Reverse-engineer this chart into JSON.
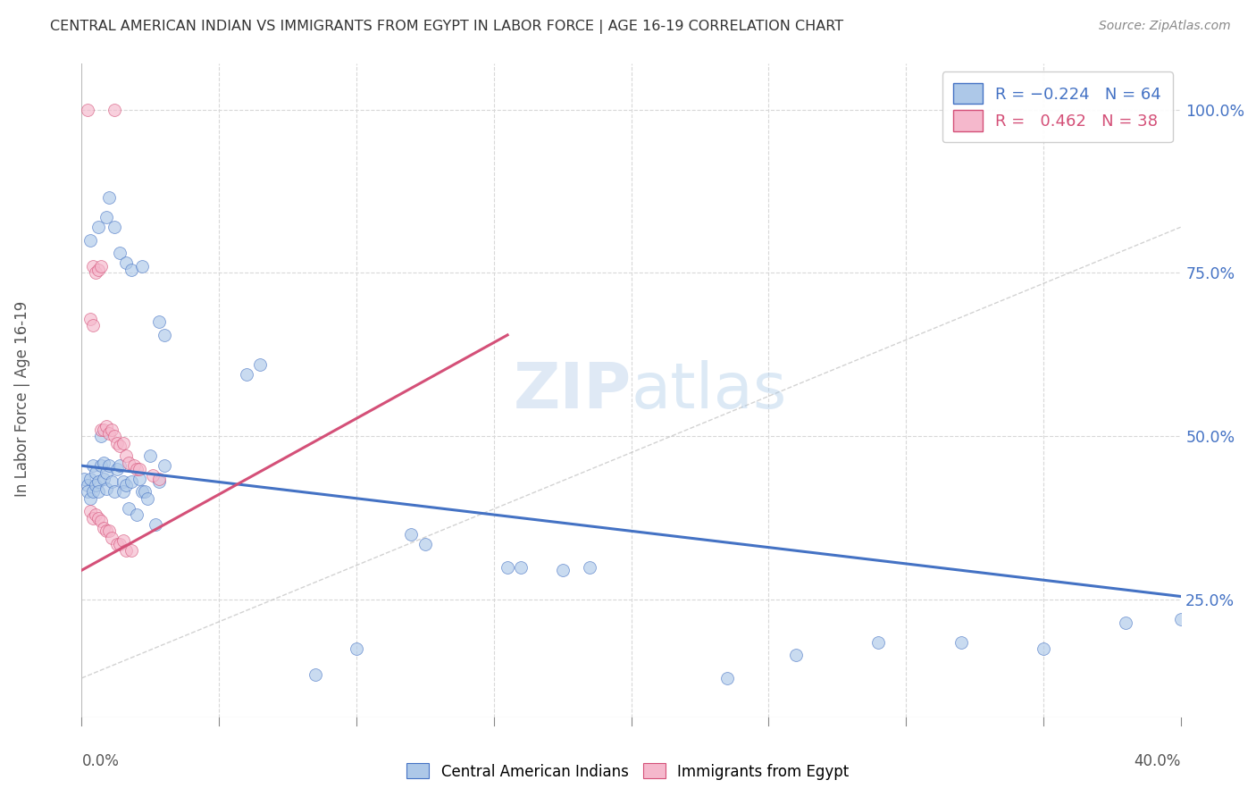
{
  "title": "CENTRAL AMERICAN INDIAN VS IMMIGRANTS FROM EGYPT IN LABOR FORCE | AGE 16-19 CORRELATION CHART",
  "source": "Source: ZipAtlas.com",
  "ylabel": "In Labor Force | Age 16-19",
  "ytick_labels": [
    "25.0%",
    "50.0%",
    "75.0%",
    "100.0%"
  ],
  "ytick_values": [
    0.25,
    0.5,
    0.75,
    1.0
  ],
  "xmin": 0.0,
  "xmax": 0.4,
  "ymin": 0.07,
  "ymax": 1.07,
  "r_blue": -0.224,
  "n_blue": 64,
  "r_pink": 0.462,
  "n_pink": 38,
  "legend_label_blue": "Central American Indians",
  "legend_label_pink": "Immigrants from Egypt",
  "dot_color_blue": "#adc8e8",
  "dot_color_pink": "#f5b8cc",
  "line_color_blue": "#4472c4",
  "line_color_pink": "#d45078",
  "dot_size": 100,
  "dot_alpha": 0.65,
  "blue_dots": [
    [
      0.001,
      0.435
    ],
    [
      0.002,
      0.425
    ],
    [
      0.002,
      0.415
    ],
    [
      0.003,
      0.435
    ],
    [
      0.003,
      0.405
    ],
    [
      0.004,
      0.455
    ],
    [
      0.004,
      0.415
    ],
    [
      0.005,
      0.445
    ],
    [
      0.005,
      0.425
    ],
    [
      0.006,
      0.43
    ],
    [
      0.006,
      0.415
    ],
    [
      0.007,
      0.5
    ],
    [
      0.007,
      0.455
    ],
    [
      0.008,
      0.46
    ],
    [
      0.008,
      0.435
    ],
    [
      0.009,
      0.445
    ],
    [
      0.009,
      0.42
    ],
    [
      0.01,
      0.455
    ],
    [
      0.011,
      0.43
    ],
    [
      0.012,
      0.415
    ],
    [
      0.013,
      0.45
    ],
    [
      0.014,
      0.455
    ],
    [
      0.015,
      0.43
    ],
    [
      0.015,
      0.415
    ],
    [
      0.016,
      0.425
    ],
    [
      0.017,
      0.39
    ],
    [
      0.018,
      0.43
    ],
    [
      0.02,
      0.38
    ],
    [
      0.021,
      0.435
    ],
    [
      0.022,
      0.415
    ],
    [
      0.023,
      0.415
    ],
    [
      0.024,
      0.405
    ],
    [
      0.025,
      0.47
    ],
    [
      0.027,
      0.365
    ],
    [
      0.028,
      0.43
    ],
    [
      0.03,
      0.455
    ],
    [
      0.003,
      0.8
    ],
    [
      0.006,
      0.82
    ],
    [
      0.009,
      0.835
    ],
    [
      0.01,
      0.865
    ],
    [
      0.012,
      0.82
    ],
    [
      0.014,
      0.78
    ],
    [
      0.016,
      0.765
    ],
    [
      0.018,
      0.755
    ],
    [
      0.022,
      0.76
    ],
    [
      0.028,
      0.675
    ],
    [
      0.03,
      0.655
    ],
    [
      0.06,
      0.595
    ],
    [
      0.065,
      0.61
    ],
    [
      0.085,
      0.135
    ],
    [
      0.1,
      0.175
    ],
    [
      0.12,
      0.35
    ],
    [
      0.125,
      0.335
    ],
    [
      0.155,
      0.3
    ],
    [
      0.16,
      0.3
    ],
    [
      0.175,
      0.295
    ],
    [
      0.185,
      0.3
    ],
    [
      0.235,
      0.13
    ],
    [
      0.26,
      0.165
    ],
    [
      0.29,
      0.185
    ],
    [
      0.32,
      0.185
    ],
    [
      0.35,
      0.175
    ],
    [
      0.38,
      0.215
    ],
    [
      0.4,
      0.22
    ]
  ],
  "pink_dots": [
    [
      0.002,
      1.0
    ],
    [
      0.012,
      1.0
    ],
    [
      0.004,
      0.76
    ],
    [
      0.005,
      0.75
    ],
    [
      0.006,
      0.755
    ],
    [
      0.007,
      0.76
    ],
    [
      0.003,
      0.68
    ],
    [
      0.004,
      0.67
    ],
    [
      0.007,
      0.51
    ],
    [
      0.008,
      0.51
    ],
    [
      0.009,
      0.515
    ],
    [
      0.01,
      0.505
    ],
    [
      0.011,
      0.51
    ],
    [
      0.012,
      0.5
    ],
    [
      0.013,
      0.49
    ],
    [
      0.014,
      0.485
    ],
    [
      0.015,
      0.49
    ],
    [
      0.016,
      0.47
    ],
    [
      0.017,
      0.46
    ],
    [
      0.019,
      0.455
    ],
    [
      0.02,
      0.45
    ],
    [
      0.021,
      0.45
    ],
    [
      0.003,
      0.385
    ],
    [
      0.004,
      0.375
    ],
    [
      0.005,
      0.38
    ],
    [
      0.006,
      0.375
    ],
    [
      0.007,
      0.37
    ],
    [
      0.008,
      0.36
    ],
    [
      0.009,
      0.355
    ],
    [
      0.01,
      0.355
    ],
    [
      0.011,
      0.345
    ],
    [
      0.013,
      0.335
    ],
    [
      0.014,
      0.335
    ],
    [
      0.015,
      0.34
    ],
    [
      0.016,
      0.325
    ],
    [
      0.018,
      0.325
    ],
    [
      0.026,
      0.44
    ],
    [
      0.028,
      0.435
    ]
  ],
  "blue_line_x": [
    0.0,
    0.4
  ],
  "blue_line_y": [
    0.455,
    0.255
  ],
  "pink_line_x": [
    0.0,
    0.155
  ],
  "pink_line_y": [
    0.295,
    0.655
  ],
  "diag_line_x": [
    0.0,
    0.4
  ],
  "diag_line_y": [
    0.13,
    0.82
  ],
  "watermark_zip": "ZIP",
  "watermark_atlas": "atlas",
  "background_color": "#ffffff",
  "grid_color": "#d8d8d8",
  "x_grid_vals": [
    0.05,
    0.1,
    0.15,
    0.2,
    0.25,
    0.3,
    0.35
  ],
  "bottom_tick_vals": [
    0.0,
    0.05,
    0.1,
    0.15,
    0.2,
    0.25,
    0.3,
    0.35,
    0.4
  ]
}
